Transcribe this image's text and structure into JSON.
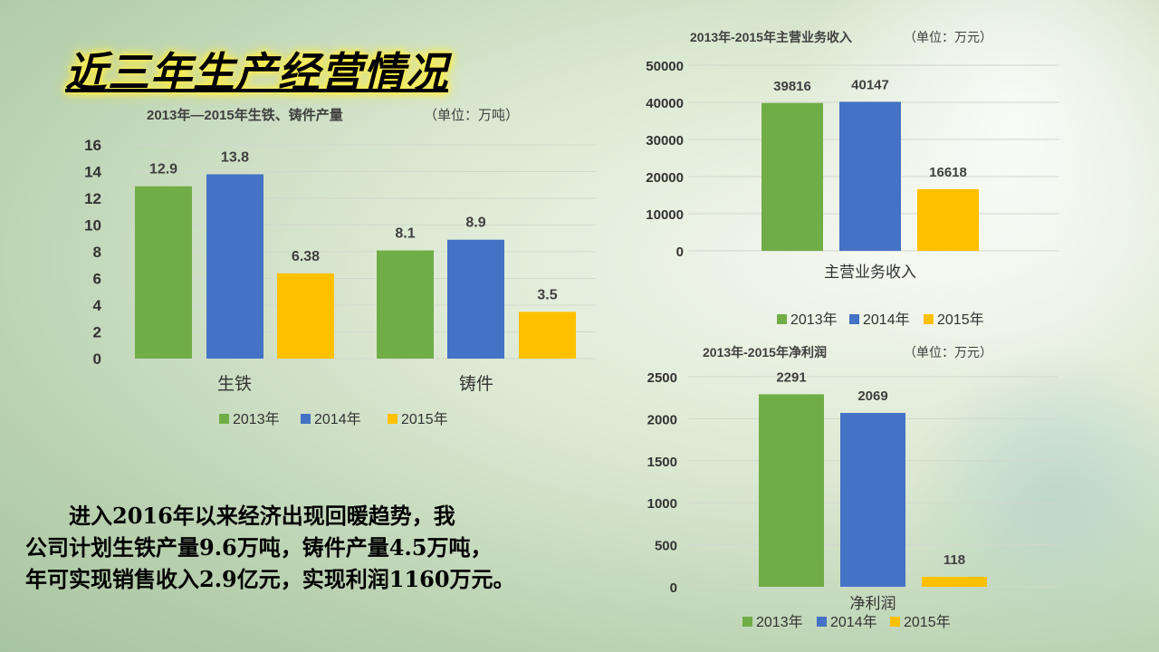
{
  "slide_title": "近三年生产经营情况",
  "paragraph": {
    "lines": [
      "　　进入2016年以来经济出现回暖趋势，我",
      "公司计划生铁产量9.6万吨，铸件产量4.5万吨，",
      "年可实现销售收入2.9亿元，实现利润1160万元。"
    ]
  },
  "colors": {
    "2013年": "#70ad47",
    "2014年": "#4472c4",
    "2015年": "#ffc000"
  },
  "chart_data": [
    {
      "type": "bar",
      "title": "2013年—2015年生铁、铸件产量",
      "unit": "（单位：万吨）",
      "categories": [
        "生铁",
        "铸件"
      ],
      "series": [
        {
          "name": "2013年",
          "values": [
            12.9,
            8.1
          ],
          "labels": [
            "12.9",
            "8.1"
          ]
        },
        {
          "name": "2014年",
          "values": [
            13.8,
            8.9
          ],
          "labels": [
            "13.8",
            "8.9"
          ]
        },
        {
          "name": "2015年",
          "values": [
            6.38,
            3.5
          ],
          "labels": [
            "6.38",
            "3.5"
          ]
        }
      ],
      "yticks": [
        0,
        2,
        4,
        6,
        8,
        10,
        12,
        14,
        16
      ],
      "ylim": [
        0,
        16
      ],
      "legend": "bottom"
    },
    {
      "type": "bar",
      "title": "2013年-2015年主营业务收入",
      "unit": "（单位：万元）",
      "categories": [
        "主营业务收入"
      ],
      "series": [
        {
          "name": "2013年",
          "values": [
            39816
          ],
          "labels": [
            "39816"
          ]
        },
        {
          "name": "2014年",
          "values": [
            40147
          ],
          "labels": [
            "40147"
          ]
        },
        {
          "name": "2015年",
          "values": [
            16618
          ],
          "labels": [
            "16618"
          ]
        }
      ],
      "yticks": [
        0,
        10000,
        20000,
        30000,
        40000,
        50000
      ],
      "ylim": [
        0,
        50000
      ],
      "legend": "bottom"
    },
    {
      "type": "bar",
      "title": "2013年-2015年净利润",
      "unit": "（单位：万元）",
      "categories": [
        "净利润"
      ],
      "series": [
        {
          "name": "2013年",
          "values": [
            2291
          ],
          "labels": [
            "2291"
          ]
        },
        {
          "name": "2014年",
          "values": [
            2069
          ],
          "labels": [
            "2069"
          ]
        },
        {
          "name": "2015年",
          "values": [
            118
          ],
          "labels": [
            "118"
          ]
        }
      ],
      "yticks": [
        0,
        500,
        1000,
        1500,
        2000,
        2500
      ],
      "ylim": [
        0,
        2500
      ],
      "legend": "bottom"
    }
  ]
}
